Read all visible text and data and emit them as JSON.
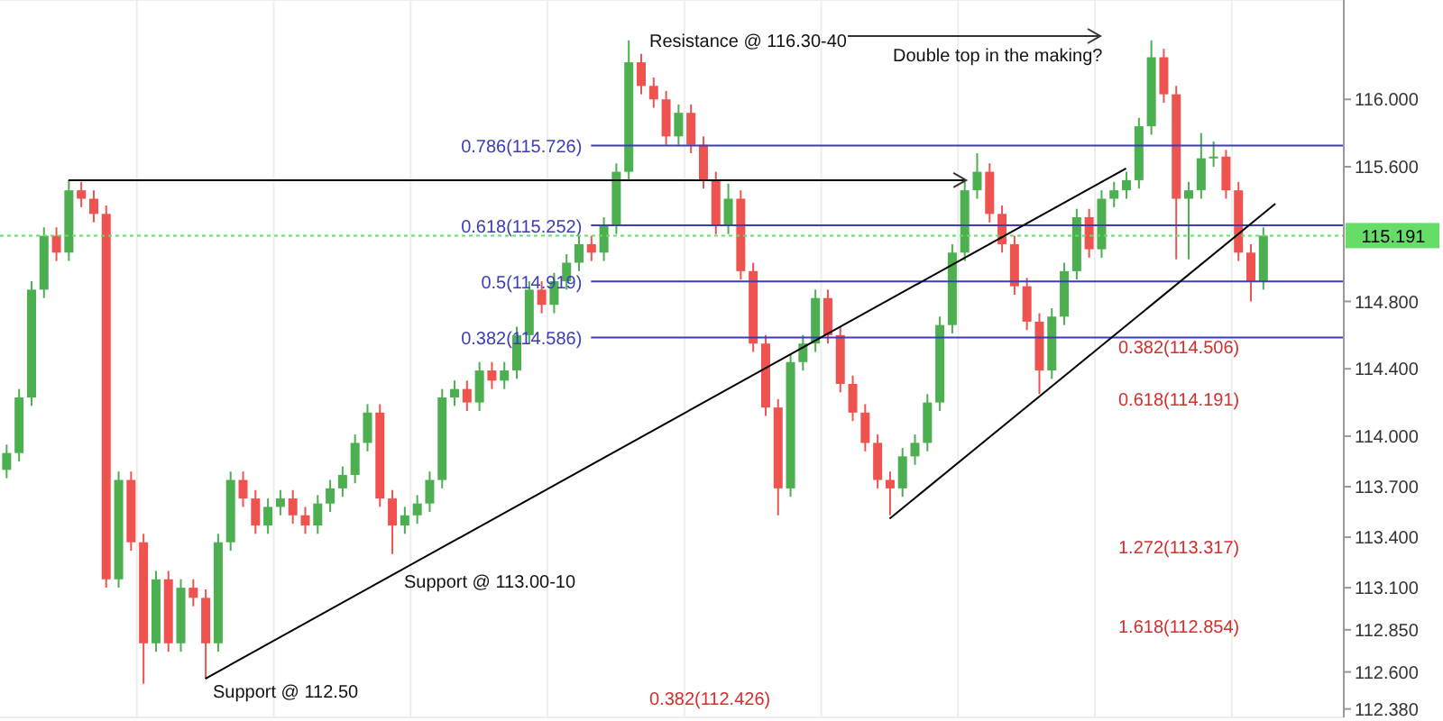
{
  "chart_data": {
    "type": "candlestick",
    "categories": [
      null,
      null,
      null,
      null,
      null,
      null,
      null,
      null,
      null,
      null,
      null,
      null,
      null,
      null,
      null,
      null,
      null,
      null,
      null,
      null,
      null,
      null,
      null,
      null,
      null,
      null,
      null,
      null,
      null,
      null,
      null,
      null,
      null,
      null,
      null,
      null,
      null,
      null,
      null,
      null,
      null,
      null,
      null,
      null,
      null,
      null,
      null,
      null,
      null,
      null,
      null,
      null,
      null,
      null,
      null,
      null,
      null,
      null,
      null,
      null,
      null,
      null,
      null,
      null,
      null,
      null,
      null,
      null,
      null,
      null,
      null,
      null,
      null,
      null,
      null,
      null,
      null,
      null,
      null,
      null,
      null,
      null,
      null,
      null,
      null,
      null,
      null,
      null,
      null,
      null,
      null,
      null,
      null,
      null,
      null,
      null,
      null,
      null,
      null,
      null,
      null,
      null,
      null,
      null,
      null,
      null,
      null,
      null
    ],
    "ohlc": [
      [
        113.8,
        113.95,
        113.75,
        113.9
      ],
      [
        113.9,
        114.28,
        113.85,
        114.23
      ],
      [
        114.23,
        114.92,
        114.18,
        114.87
      ],
      [
        114.87,
        115.24,
        114.82,
        115.19
      ],
      [
        115.19,
        115.24,
        115.04,
        115.09
      ],
      [
        115.09,
        115.52,
        115.04,
        115.46
      ],
      [
        115.46,
        115.51,
        115.36,
        115.41
      ],
      [
        115.41,
        115.46,
        115.27,
        115.32
      ],
      [
        115.32,
        115.37,
        113.1,
        113.15
      ],
      [
        113.15,
        113.79,
        113.1,
        113.74
      ],
      [
        113.74,
        113.79,
        113.32,
        113.37
      ],
      [
        113.37,
        113.42,
        112.53,
        112.77
      ],
      [
        112.77,
        113.2,
        112.72,
        113.15
      ],
      [
        113.15,
        113.2,
        112.72,
        112.77
      ],
      [
        112.77,
        113.15,
        112.72,
        113.1
      ],
      [
        113.1,
        113.15,
        112.99,
        113.04
      ],
      [
        113.04,
        113.09,
        112.56,
        112.77
      ],
      [
        112.77,
        113.42,
        112.72,
        113.37
      ],
      [
        113.37,
        113.79,
        113.32,
        113.74
      ],
      [
        113.74,
        113.79,
        113.58,
        113.63
      ],
      [
        113.63,
        113.68,
        113.42,
        113.47
      ],
      [
        113.47,
        113.63,
        113.42,
        113.58
      ],
      [
        113.58,
        113.68,
        113.53,
        113.63
      ],
      [
        113.63,
        113.68,
        113.48,
        113.53
      ],
      [
        113.53,
        113.58,
        113.42,
        113.47
      ],
      [
        113.47,
        113.65,
        113.42,
        113.6
      ],
      [
        113.6,
        113.74,
        113.55,
        113.69
      ],
      [
        113.69,
        113.82,
        113.64,
        113.77
      ],
      [
        113.77,
        114.01,
        113.72,
        113.96
      ],
      [
        113.96,
        114.19,
        113.91,
        114.14
      ],
      [
        114.14,
        114.19,
        113.58,
        113.63
      ],
      [
        113.63,
        113.68,
        113.3,
        113.47
      ],
      [
        113.47,
        113.58,
        113.42,
        113.53
      ],
      [
        113.53,
        113.65,
        113.48,
        113.6
      ],
      [
        113.6,
        113.79,
        113.55,
        113.74
      ],
      [
        113.74,
        114.28,
        113.69,
        114.23
      ],
      [
        114.23,
        114.33,
        114.18,
        114.28
      ],
      [
        114.28,
        114.33,
        114.15,
        114.2
      ],
      [
        114.2,
        114.44,
        114.15,
        114.39
      ],
      [
        114.39,
        114.44,
        114.28,
        114.33
      ],
      [
        114.33,
        114.44,
        114.28,
        114.39
      ],
      [
        114.39,
        114.65,
        114.34,
        114.6
      ],
      [
        114.6,
        114.92,
        114.55,
        114.87
      ],
      [
        114.87,
        114.92,
        114.73,
        114.78
      ],
      [
        114.78,
        114.97,
        114.73,
        114.92
      ],
      [
        114.92,
        115.08,
        114.87,
        115.03
      ],
      [
        115.03,
        115.19,
        114.98,
        115.14
      ],
      [
        115.14,
        115.19,
        115.04,
        115.09
      ],
      [
        115.09,
        115.3,
        115.04,
        115.25
      ],
      [
        115.25,
        115.62,
        115.2,
        115.57
      ],
      [
        115.57,
        116.35,
        115.52,
        116.22
      ],
      [
        116.22,
        116.27,
        116.03,
        116.08
      ],
      [
        116.08,
        116.13,
        115.95,
        116.0
      ],
      [
        116.0,
        116.05,
        115.73,
        115.78
      ],
      [
        115.78,
        115.97,
        115.73,
        115.92
      ],
      [
        115.92,
        115.97,
        115.68,
        115.73
      ],
      [
        115.73,
        115.78,
        115.47,
        115.52
      ],
      [
        115.52,
        115.57,
        115.2,
        115.25
      ],
      [
        115.25,
        115.5,
        115.2,
        115.41
      ],
      [
        115.41,
        115.46,
        114.93,
        114.98
      ],
      [
        114.98,
        115.03,
        114.5,
        114.55
      ],
      [
        114.55,
        114.6,
        114.12,
        114.17
      ],
      [
        114.17,
        114.22,
        113.53,
        113.69
      ],
      [
        113.69,
        114.49,
        113.64,
        114.44
      ],
      [
        114.44,
        114.6,
        114.39,
        114.55
      ],
      [
        114.55,
        114.87,
        114.5,
        114.82
      ],
      [
        114.82,
        114.87,
        114.55,
        114.6
      ],
      [
        114.6,
        114.65,
        114.26,
        114.31
      ],
      [
        114.31,
        114.36,
        114.09,
        114.14
      ],
      [
        114.14,
        114.19,
        113.91,
        113.96
      ],
      [
        113.96,
        114.01,
        113.69,
        113.74
      ],
      [
        113.74,
        113.79,
        113.53,
        113.69
      ],
      [
        113.69,
        113.93,
        113.64,
        113.88
      ],
      [
        113.88,
        114.01,
        113.83,
        113.96
      ],
      [
        113.96,
        114.25,
        113.91,
        114.2
      ],
      [
        114.2,
        114.71,
        114.15,
        114.66
      ],
      [
        114.66,
        115.14,
        114.61,
        115.09
      ],
      [
        115.09,
        115.51,
        115.04,
        115.46
      ],
      [
        115.46,
        115.68,
        115.41,
        115.57
      ],
      [
        115.57,
        115.62,
        115.27,
        115.32
      ],
      [
        115.32,
        115.37,
        115.09,
        115.14
      ],
      [
        115.14,
        115.19,
        114.84,
        114.89
      ],
      [
        114.89,
        114.94,
        114.63,
        114.68
      ],
      [
        114.68,
        114.73,
        114.25,
        114.39
      ],
      [
        114.39,
        114.76,
        114.34,
        114.71
      ],
      [
        114.71,
        115.03,
        114.66,
        114.98
      ],
      [
        114.98,
        115.35,
        114.93,
        115.3
      ],
      [
        115.3,
        115.35,
        115.06,
        115.11
      ],
      [
        115.11,
        115.46,
        115.06,
        115.41
      ],
      [
        115.41,
        115.51,
        115.36,
        115.46
      ],
      [
        115.46,
        115.57,
        115.41,
        115.52
      ],
      [
        115.52,
        115.89,
        115.47,
        115.84
      ],
      [
        115.84,
        116.35,
        115.79,
        116.25
      ],
      [
        116.25,
        116.3,
        115.98,
        116.03
      ],
      [
        116.03,
        116.08,
        115.05,
        115.41
      ],
      [
        115.41,
        115.51,
        115.05,
        115.46
      ],
      [
        115.46,
        115.8,
        115.41,
        115.65
      ],
      [
        115.65,
        115.75,
        115.6,
        115.66
      ],
      [
        115.66,
        115.7,
        115.41,
        115.46
      ],
      [
        115.46,
        115.51,
        115.04,
        115.09
      ],
      [
        115.09,
        115.14,
        114.8,
        114.92
      ],
      [
        114.92,
        115.24,
        114.87,
        115.191
      ],
      null,
      null,
      null,
      null,
      null,
      null
    ],
    "colors": [
      "#4caf50",
      "#4caf50",
      "#4caf50",
      "#4caf50",
      "#ef5350",
      "#4caf50",
      "#ef5350",
      "#ef5350",
      "#ef5350",
      "#4caf50",
      "#ef5350",
      "#ef5350",
      "#4caf50",
      "#ef5350",
      "#4caf50",
      "#ef5350",
      "#ef5350",
      "#4caf50",
      "#4caf50",
      "#ef5350",
      "#ef5350",
      "#4caf50",
      "#4caf50",
      "#ef5350",
      "#ef5350",
      "#4caf50",
      "#4caf50",
      "#4caf50",
      "#4caf50",
      "#4caf50",
      "#ef5350",
      "#ef5350",
      "#4caf50",
      "#4caf50",
      "#4caf50",
      "#4caf50",
      "#4caf50",
      "#ef5350",
      "#4caf50",
      "#ef5350",
      "#4caf50",
      "#4caf50",
      "#4caf50",
      "#ef5350",
      "#4caf50",
      "#4caf50",
      "#4caf50",
      "#ef5350",
      "#4caf50",
      "#4caf50",
      "#4caf50",
      "#ef5350",
      "#ef5350",
      "#ef5350",
      "#4caf50",
      "#ef5350",
      "#ef5350",
      "#ef5350",
      "#4caf50",
      "#ef5350",
      "#ef5350",
      "#ef5350",
      "#ef5350",
      "#4caf50",
      "#4caf50",
      "#4caf50",
      "#ef5350",
      "#ef5350",
      "#ef5350",
      "#ef5350",
      "#ef5350",
      "#ef5350",
      "#4caf50",
      "#4caf50",
      "#4caf50",
      "#4caf50",
      "#4caf50",
      "#4caf50",
      "#4caf50",
      "#ef5350",
      "#ef5350",
      "#ef5350",
      "#ef5350",
      "#ef5350",
      "#4caf50",
      "#4caf50",
      "#4caf50",
      "#ef5350",
      "#4caf50",
      "#4caf50",
      "#4caf50",
      "#4caf50",
      "#4caf50",
      "#ef5350",
      "#ef5350",
      "#4caf50",
      "#4caf50",
      "#4caf50",
      "#ef5350",
      "#ef5350",
      "#ef5350",
      "#4caf50",
      null,
      null,
      null,
      null,
      null,
      null
    ],
    "series": [
      {
        "type": "line",
        "color": "#000000",
        "values": [
          null,
          null,
          null,
          null,
          null,
          null,
          null,
          null,
          null,
          null,
          null,
          null,
          null,
          null,
          null,
          null,
          112.56,
          null,
          null,
          null,
          null,
          null,
          null,
          null,
          null,
          null,
          null,
          null,
          null,
          null,
          null,
          null,
          null,
          null,
          null,
          null,
          null,
          null,
          null,
          null,
          null,
          null,
          null,
          null,
          null,
          null,
          null,
          null,
          null,
          null,
          null,
          null,
          null,
          null,
          null,
          null,
          null,
          null,
          null,
          null,
          null,
          null,
          null,
          null,
          null,
          null,
          null,
          null,
          null,
          null,
          null,
          null,
          null,
          null,
          null,
          null,
          null,
          null,
          null,
          null,
          null,
          null,
          null,
          null,
          null,
          null,
          null,
          null,
          null,
          null,
          115.59,
          null,
          null,
          null,
          null,
          null,
          null,
          null,
          null,
          null,
          null,
          null,
          null,
          null,
          null,
          null,
          null,
          null
        ]
      },
      {
        "type": "line",
        "color": "#000000",
        "values": [
          null,
          null,
          null,
          null,
          null,
          null,
          null,
          null,
          null,
          null,
          null,
          null,
          null,
          null,
          null,
          null,
          null,
          null,
          null,
          null,
          null,
          null,
          null,
          null,
          null,
          null,
          null,
          null,
          null,
          null,
          null,
          null,
          null,
          null,
          null,
          null,
          null,
          null,
          null,
          null,
          null,
          null,
          null,
          null,
          null,
          null,
          null,
          null,
          null,
          null,
          null,
          null,
          null,
          null,
          null,
          null,
          null,
          null,
          null,
          null,
          null,
          null,
          null,
          null,
          null,
          null,
          null,
          null,
          null,
          null,
          null,
          113.51,
          null,
          null,
          null,
          null,
          null,
          null,
          null,
          null,
          null,
          null,
          null,
          null,
          null,
          null,
          null,
          null,
          null,
          null,
          null,
          null,
          null,
          null,
          null,
          null,
          null,
          null,
          null,
          null,
          null,
          null,
          115.38,
          null,
          null,
          null,
          null,
          null
        ]
      },
      {
        "type": "line",
        "color": "#000000",
        "values": [
          null,
          null,
          null,
          null,
          null,
          115.52,
          null,
          null,
          null,
          null,
          null,
          null,
          null,
          null,
          null,
          null,
          null,
          null,
          null,
          null,
          null,
          null,
          null,
          null,
          null,
          null,
          null,
          null,
          null,
          null,
          null,
          null,
          null,
          null,
          null,
          null,
          null,
          null,
          null,
          null,
          null,
          null,
          null,
          null,
          null,
          null,
          null,
          null,
          null,
          null,
          null,
          null,
          null,
          null,
          null,
          null,
          null,
          null,
          null,
          null,
          null,
          null,
          null,
          null,
          null,
          null,
          null,
          null,
          null,
          null,
          null,
          null,
          null,
          null,
          null,
          null,
          null,
          115.52,
          null,
          null,
          null,
          null,
          null,
          null,
          null,
          null,
          null,
          null,
          null,
          null,
          null,
          null,
          null,
          null,
          null,
          null,
          null,
          null,
          null,
          null,
          null,
          null,
          null,
          null,
          null,
          null,
          null,
          null
        ]
      }
    ],
    "ylim": [
      112.33,
      116.59
    ],
    "yticks": [
      {
        "value": 112.38,
        "label": "112.380"
      },
      {
        "value": 112.6,
        "label": "112.600"
      },
      {
        "value": 112.85,
        "label": "112.850"
      },
      {
        "value": 113.1,
        "label": "113.100"
      },
      {
        "value": 113.4,
        "label": "113.400"
      },
      {
        "value": 113.7,
        "label": "113.700"
      },
      {
        "value": 114,
        "label": "114.000"
      },
      {
        "value": 114.4,
        "label": "114.400"
      },
      {
        "value": 114.8,
        "label": "114.800"
      },
      {
        "value": 115.6,
        "label": "115.600"
      },
      {
        "value": 116,
        "label": "116.000"
      }
    ],
    "ref_lines": [
      {
        "axis": "y",
        "value": 115.726,
        "label": "0.786(115.726)",
        "color": "#3d3db8"
      },
      {
        "axis": "y",
        "value": 115.252,
        "label": "0.618(115.252)",
        "color": "#3d3db8"
      },
      {
        "axis": "y",
        "value": 114.919,
        "label": "0.5(114.919)",
        "color": "#3d3db8"
      },
      {
        "axis": "y",
        "value": 114.586,
        "label": "0.382(114.586)",
        "color": "#3d3db8"
      },
      {
        "axis": "y",
        "value": 115.191,
        "label": "115.191",
        "color": "#66dd66",
        "line_style": "dotted"
      }
    ],
    "annotations": [
      "Resistance @ 116.30-40",
      "Double top in the making?",
      "Support @ 113.00-10",
      "Support @ 112.50",
      "0.382(114.506)",
      "0.618(114.191)",
      "1.272(113.317)",
      "1.618(112.854)",
      "0.382(112.426)"
    ],
    "grid": true,
    "tick_labels": "y"
  }
}
